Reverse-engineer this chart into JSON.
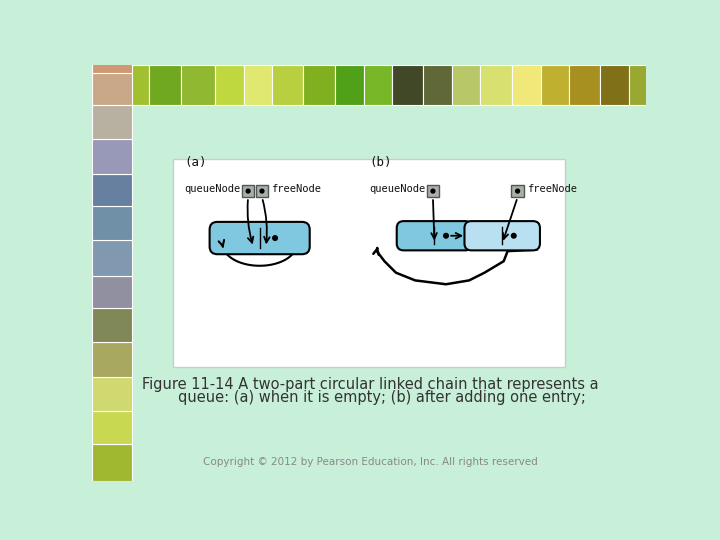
{
  "bg_slide": "#c8f0d8",
  "bg_light_mint": "#d0f0dc",
  "bg_diagram": "#ffffff",
  "node_fill_dark": "#80c8e0",
  "node_fill_light": "#b8e0f0",
  "box_fill": "#a8b0a8",
  "box_edge": "#888888",
  "text_color": "#111111",
  "caption_color": "#333333",
  "copyright_color": "#888888",
  "title_line1": "Figure 11-14 A two-part circular linked chain that represents a",
  "title_line2": "     queue: (a) when it is empty; (b) after adding one entry;",
  "copyright": "Copyright © 2012 by Pearson Education, Inc. All rights reserved",
  "label_a": "(a)",
  "label_b": "(b)",
  "label_queueNode": "queueNode",
  "label_freeNode": "freeNode",
  "mosaic_top": [
    "#c8d850",
    "#a0c030",
    "#70a820",
    "#90b830",
    "#c0d840",
    "#e0e870",
    "#b8d040",
    "#80b020",
    "#50a018",
    "#78b828",
    "#404828",
    "#606838",
    "#b8c868",
    "#d8e070",
    "#f0e878",
    "#c0b030",
    "#a89020",
    "#807018",
    "#98a830",
    "#b8c040"
  ],
  "mosaic_left_colors": [
    "#a0b830",
    "#c8d850",
    "#d0d870",
    "#a8a860",
    "#808858",
    "#9090a0",
    "#8098b0",
    "#7090a8",
    "#6880a0",
    "#9898b8",
    "#b8b0a0",
    "#c8a888",
    "#d09870",
    "#c08858",
    "#b07048",
    "#7890a8",
    "#9898c0",
    "#b0b0d0",
    "#c8c8a0",
    "#d0d890"
  ]
}
